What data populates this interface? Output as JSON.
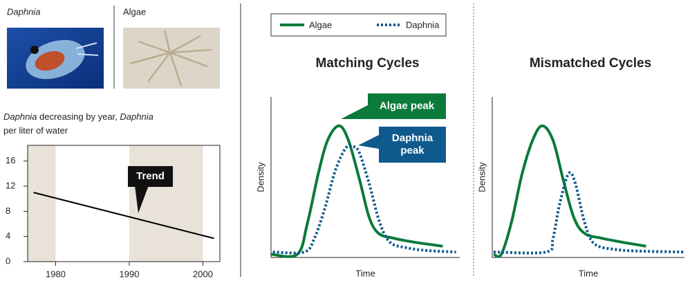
{
  "labels": {
    "daphnia": "Daphnia",
    "algae": "Algae"
  },
  "caption": [
    [
      {
        "text": "Daphnia",
        "italic": true
      },
      {
        "text": " decreasing by year, "
      },
      {
        "text": "Daphnia",
        "italic": true
      }
    ],
    [
      {
        "text": "per liter of water"
      }
    ]
  ],
  "chart_data": [
    {
      "type": "line",
      "x": [
        1977,
        2001.5
      ],
      "values": [
        11,
        3.7
      ],
      "color": "#000000",
      "xlim": [
        1976.2,
        2002.3
      ],
      "ylim": [
        0,
        18.5
      ],
      "xticks": [
        1980,
        1990,
        2000
      ],
      "yticks": [
        0,
        4,
        8,
        12,
        16
      ],
      "shaded_ranges": [
        [
          1976.2,
          1980
        ],
        [
          1990,
          2000
        ]
      ],
      "shade_color": "#e8e2d8",
      "annotations": [
        {
          "text": "Trend",
          "color": "#111111"
        }
      ]
    },
    {
      "type": "line",
      "title": "Matching Cycles",
      "xlabel": "Time",
      "ylabel": "Density",
      "xlim": [
        0,
        100
      ],
      "ylim": [
        0,
        100
      ],
      "series": [
        {
          "name": "Algae",
          "color": "#0b7a3b",
          "style": "solid",
          "x": [
            0,
            14,
            19.4,
            25,
            30,
            36,
            41,
            47,
            52,
            57,
            65,
            76,
            91
          ],
          "values": [
            2,
            2,
            22,
            52,
            73,
            82,
            73,
            48,
            25,
            15,
            12,
            9.5,
            7
          ]
        },
        {
          "name": "Daphnia",
          "color": "#0f5a8c",
          "style": "dotted",
          "x": [
            1,
            17.6,
            23,
            28.6,
            34,
            39.5,
            43,
            46.5,
            52,
            57.5,
            63,
            72,
            83,
            98
          ],
          "values": [
            3.4,
            3.4,
            12,
            31,
            54,
            68,
            69,
            66,
            46,
            22,
            9.5,
            6,
            4.3,
            3.4
          ]
        }
      ],
      "annotations": [
        {
          "lines": [
            "Algae peak"
          ],
          "color": "#0b7a3b"
        },
        {
          "lines": [
            "Daphnia",
            "peak"
          ],
          "color": "#0f5a8c"
        }
      ]
    },
    {
      "type": "line",
      "title": "Mismatched Cycles",
      "xlabel": "Time",
      "ylabel": "Density",
      "xlim": [
        0,
        100
      ],
      "ylim": [
        0,
        100
      ],
      "series": [
        {
          "color": "#0b7a3b",
          "style": "solid",
          "x": [
            0.7,
            4.7,
            10,
            15.5,
            21,
            26,
            31.6,
            37,
            42.4,
            48,
            57,
            67.6,
            80
          ],
          "values": [
            2,
            2,
            22,
            52,
            73,
            82,
            73,
            48,
            25,
            15,
            12,
            9.5,
            7
          ]
        },
        {
          "color": "#0f5a8c",
          "style": "dotted",
          "x": [
            0.7,
            28,
            31.6,
            35,
            39.6,
            43,
            48,
            53,
            64,
            78.4,
            100
          ],
          "values": [
            3.4,
            3.4,
            12,
            33,
            52,
            47,
            22,
            8.6,
            5,
            3.9,
            3.4
          ]
        }
      ]
    }
  ]
}
